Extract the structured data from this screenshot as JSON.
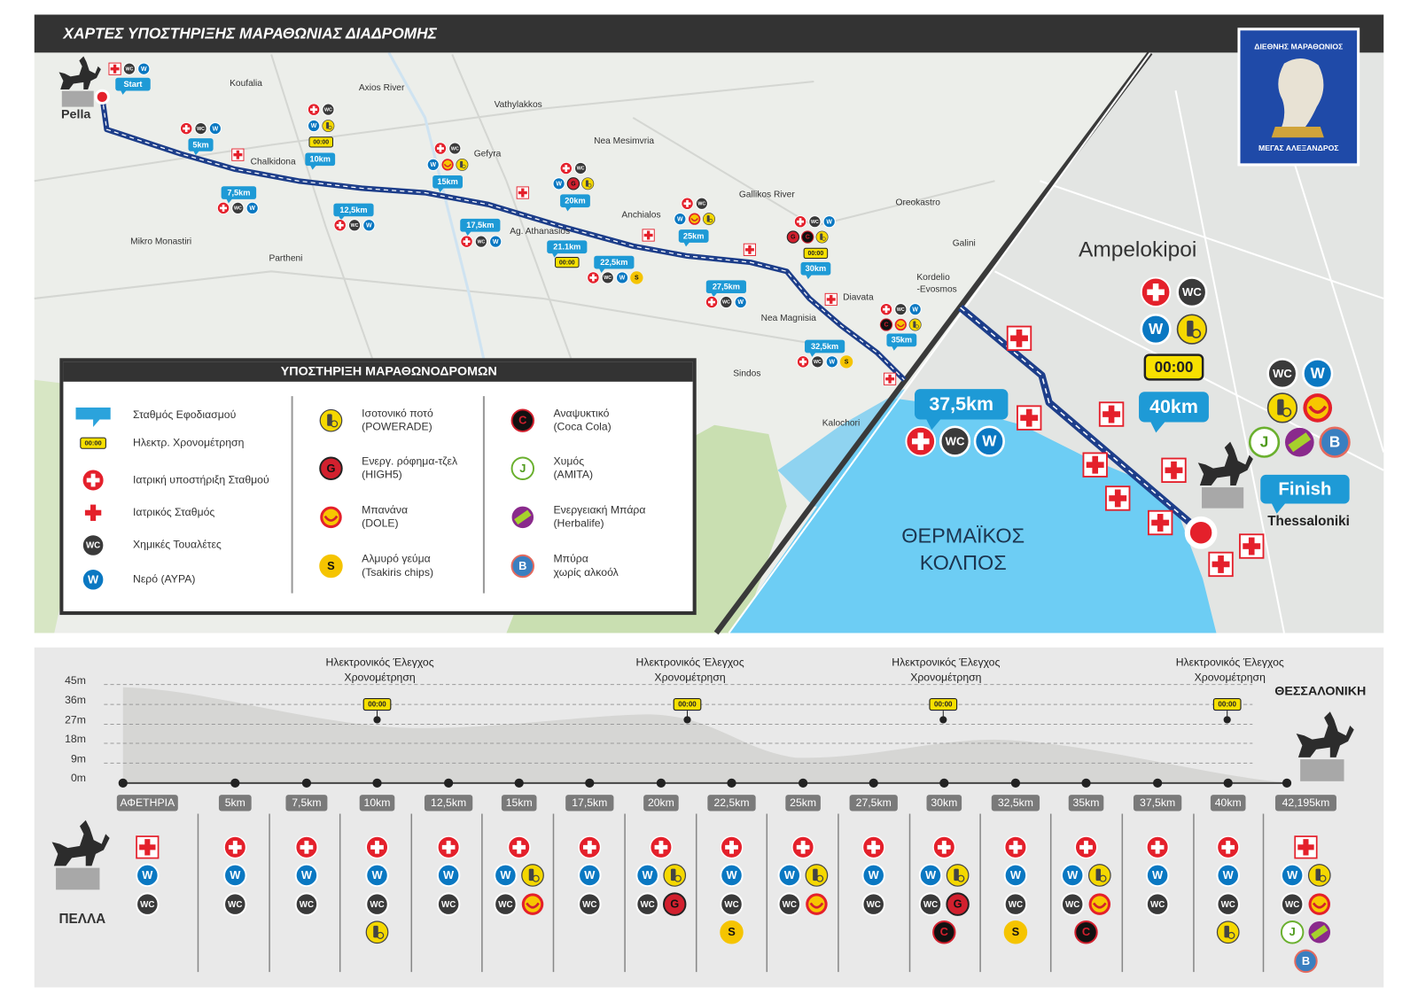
{
  "header": {
    "title": "ΧΑΡΤΕΣ ΥΠΟΣΤΗΡΙΞΗΣ ΜΑΡΑΘΩΝΙΑΣ ΔΙΑΔΡΟΜΗΣ"
  },
  "logo": {
    "top": "ΔΙΕΘΝΗΣ ΜΑΡΑΘΩΝΙΟΣ",
    "bottom": "ΜΕΓΑΣ ΑΛΕΞΑΝΔΡΟΣ"
  },
  "timing_text": "00:00",
  "map": {
    "places": [
      "Pella",
      "Koufalia",
      "Axios River",
      "Vathylakkos",
      "Chalkidona",
      "Gefyra",
      "Nea Mesimvria",
      "Gallikos River",
      "Oreokastro",
      "Anchialos",
      "Ag. Athanasios",
      "Mikro Monastiri",
      "Partheni",
      "Galini",
      "Kordelio",
      "-Evosmos",
      "Diavata",
      "Nea Magnisia",
      "Sindos",
      "Kalochori"
    ],
    "markers": [
      {
        "label": "Start",
        "letters": [
          "WC",
          "W"
        ]
      },
      {
        "label": "5km",
        "letters": [
          "WC",
          "W"
        ]
      },
      {
        "label": "7,5km",
        "letters": [
          "WC",
          "W"
        ]
      },
      {
        "label": "10km",
        "letters": [
          "WC",
          "W"
        ]
      },
      {
        "label": "12,5km",
        "letters": [
          "WC",
          "W"
        ]
      },
      {
        "label": "15km",
        "letters": [
          "WC",
          "W"
        ]
      },
      {
        "label": "17,5km",
        "letters": [
          "WC",
          "W"
        ]
      },
      {
        "label": "20km",
        "letters": [
          "WC",
          "W",
          "G"
        ]
      },
      {
        "label": "21.1km",
        "letters": []
      },
      {
        "label": "22,5km",
        "letters": [
          "WC",
          "W",
          "S"
        ]
      },
      {
        "label": "25km",
        "letters": [
          "WC",
          "W"
        ]
      },
      {
        "label": "27,5km",
        "letters": [
          "WC",
          "W"
        ]
      },
      {
        "label": "30km",
        "letters": [
          "WC",
          "W",
          "G",
          "C"
        ]
      },
      {
        "label": "32,5km",
        "letters": [
          "WC",
          "W",
          "S"
        ]
      },
      {
        "label": "35km",
        "letters": [
          "WC",
          "W",
          "C"
        ]
      }
    ],
    "zoom": {
      "area": "Ampelokipoi",
      "city": "Thessaloniki",
      "gulf": [
        "ΘΕΡΜΑΪΚΟΣ",
        "ΚΟΛΠΟΣ"
      ],
      "finish": "Finish",
      "markers": [
        {
          "label": "37,5km",
          "letters": [
            "WC",
            "W"
          ]
        },
        {
          "label": "40km",
          "letters": [
            "WC",
            "W"
          ]
        }
      ],
      "extra": {
        "letters": [
          "WC",
          "W",
          "J",
          "B"
        ]
      }
    }
  },
  "legend": {
    "title": "ΥΠΟΣΤΗΡΙΞΗ ΜΑΡΑΘΩΝΟΔΡΟΜΩΝ",
    "items": [
      {
        "lines": [
          "Σταθμός Εφοδιασμού"
        ]
      },
      {
        "lines": [
          "Ηλεκτρ. Χρονομέτρηση"
        ]
      },
      {
        "lines": [
          "Ιατρική υποστήριξη Σταθμού"
        ]
      },
      {
        "lines": [
          "Ιατρικός Σταθμός"
        ]
      },
      {
        "lines": [
          "Χημικές Τουαλέτες"
        ],
        "letter": "WC"
      },
      {
        "lines": [
          "Νερό (ΑΥΡΑ)"
        ],
        "letter": "W"
      },
      {
        "lines": [
          "Ισοτονικό ποτό",
          "(POWERADE)"
        ]
      },
      {
        "lines": [
          "Ενεργ. ρόφημα-τζελ",
          "(HIGH5)"
        ],
        "letter": "G"
      },
      {
        "lines": [
          "Μπανάνα",
          "(DOLE)"
        ]
      },
      {
        "lines": [
          "Αλμυρό γεύμα",
          "(Tsakiris chips)"
        ],
        "letter": "S"
      },
      {
        "lines": [
          "Αναψυκτικό",
          "(Coca Cola)"
        ],
        "letter": "C"
      },
      {
        "lines": [
          "Χυμός",
          "(AMITA)"
        ],
        "letter": "J"
      },
      {
        "lines": [
          "Ενεργειακή Μπάρα",
          "(Herbalife)"
        ]
      },
      {
        "lines": [
          "Μπύρα",
          "χωρίς αλκοόλ"
        ],
        "letter": "B"
      }
    ]
  },
  "profile": {
    "yticks": [
      "45m",
      "36m",
      "27m",
      "18m",
      "9m",
      "0m"
    ],
    "checks": [
      {
        "lines": [
          "Ηλεκτρονικός Έλεγχος",
          "Χρονομέτρηση"
        ]
      },
      {
        "lines": [
          "Ηλεκτρονικός Έλεγχος",
          "Χρονομέτρηση"
        ]
      },
      {
        "lines": [
          "Ηλεκτρονικός Έλεγχος",
          "Χρονομέτρηση"
        ]
      },
      {
        "lines": [
          "Ηλεκτρονικός Έλεγχος",
          "Χρονομέτρηση"
        ]
      }
    ],
    "start": "ΠΕΛΛΑ",
    "end": "ΘΕΣΣΑΛΟΝΙΚΗ",
    "stations": [
      {
        "label": "ΑΦΕΤΗΡΙΑ",
        "letters": [
          "W",
          "WC"
        ]
      },
      {
        "label": "5km",
        "letters": [
          "W",
          "WC"
        ]
      },
      {
        "label": "7,5km",
        "letters": [
          "W",
          "WC"
        ]
      },
      {
        "label": "10km",
        "letters": [
          "W",
          "WC"
        ]
      },
      {
        "label": "12,5km",
        "letters": [
          "W",
          "WC"
        ]
      },
      {
        "label": "15km",
        "letters": [
          "W",
          "WC"
        ]
      },
      {
        "label": "17,5km",
        "letters": [
          "W",
          "WC"
        ]
      },
      {
        "label": "20km",
        "letters": [
          "W",
          "WC",
          "G"
        ]
      },
      {
        "label": "22,5km",
        "letters": [
          "W",
          "WC",
          "S"
        ]
      },
      {
        "label": "25km",
        "letters": [
          "W",
          "WC"
        ]
      },
      {
        "label": "27,5km",
        "letters": [
          "W",
          "WC"
        ]
      },
      {
        "label": "30km",
        "letters": [
          "W",
          "WC",
          "G",
          "C"
        ]
      },
      {
        "label": "32,5km",
        "letters": [
          "W",
          "WC",
          "S"
        ]
      },
      {
        "label": "35km",
        "letters": [
          "W",
          "WC",
          "C"
        ]
      },
      {
        "label": "37,5km",
        "letters": [
          "W",
          "WC"
        ]
      },
      {
        "label": "40km",
        "letters": [
          "W",
          "WC"
        ]
      },
      {
        "label": "42,195km",
        "letters": [
          "W",
          "WC",
          "J",
          "B"
        ]
      }
    ]
  }
}
